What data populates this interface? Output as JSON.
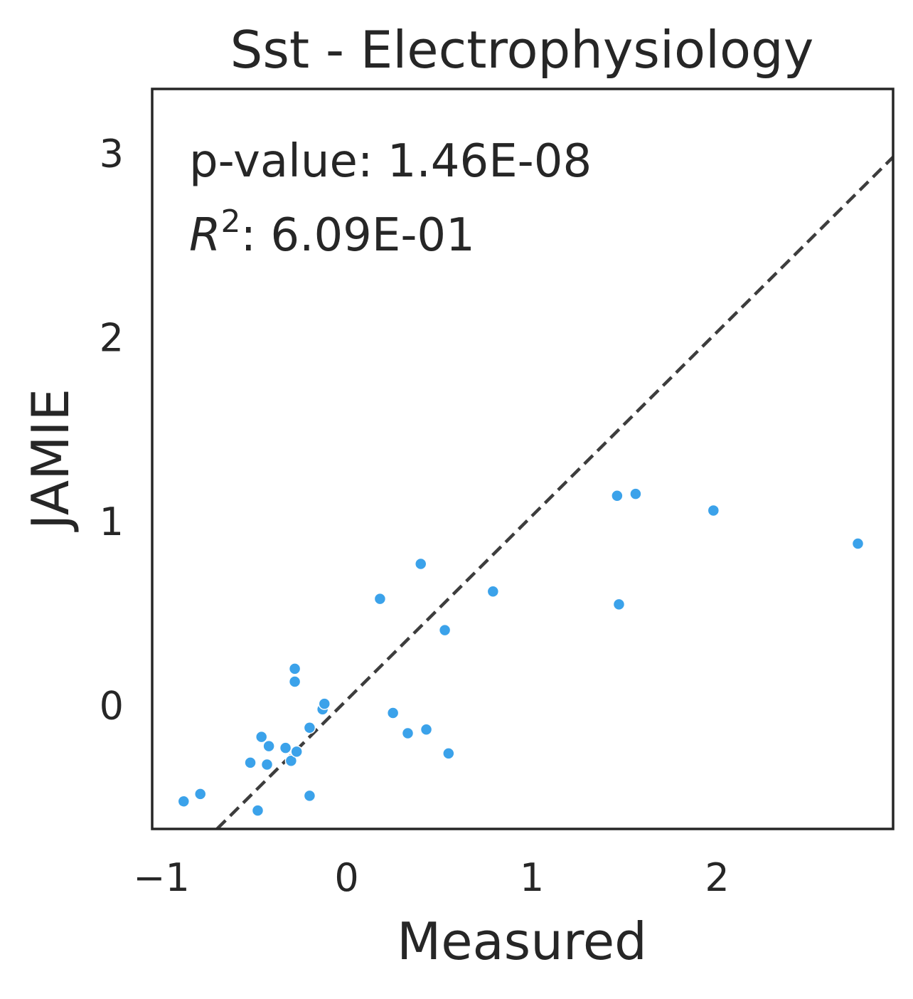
{
  "chart_data": {
    "type": "scatter",
    "title": "Sst - Electrophysiology",
    "xlabel": "Measured",
    "ylabel": "JAMIE",
    "xlim": [
      -1.05,
      2.95
    ],
    "ylim": [
      -0.67,
      3.35
    ],
    "xticks": [
      -1,
      0,
      1,
      2
    ],
    "xtick_labels": [
      "−1",
      "0",
      "1",
      "2"
    ],
    "yticks": [
      0,
      1,
      2,
      3
    ],
    "ytick_labels": [
      "0",
      "1",
      "2",
      "3"
    ],
    "grid": false,
    "point_color": "#3ba2ea",
    "fit_line": {
      "style": "dashed",
      "color": "#3d3d3d",
      "points": [
        [
          -0.7,
          -0.67
        ],
        [
          2.95,
          2.98
        ]
      ]
    },
    "annotations": {
      "pvalue_text": "p-value: 1.46E-08",
      "r2_symbol": "R",
      "r2_exponent": "2",
      "r2_value": ": 6.09E-01"
    },
    "points": [
      {
        "x": -0.88,
        "y": -0.52
      },
      {
        "x": -0.79,
        "y": -0.48
      },
      {
        "x": -0.52,
        "y": -0.31
      },
      {
        "x": -0.48,
        "y": -0.57
      },
      {
        "x": -0.46,
        "y": -0.17
      },
      {
        "x": -0.43,
        "y": -0.32
      },
      {
        "x": -0.42,
        "y": -0.22
      },
      {
        "x": -0.33,
        "y": -0.23
      },
      {
        "x": -0.3,
        "y": -0.3
      },
      {
        "x": -0.28,
        "y": 0.13
      },
      {
        "x": -0.28,
        "y": 0.2
      },
      {
        "x": -0.27,
        "y": -0.25
      },
      {
        "x": -0.2,
        "y": -0.49
      },
      {
        "x": -0.2,
        "y": -0.12
      },
      {
        "x": -0.13,
        "y": -0.02
      },
      {
        "x": -0.12,
        "y": 0.01
      },
      {
        "x": 0.18,
        "y": 0.58
      },
      {
        "x": 0.25,
        "y": -0.04
      },
      {
        "x": 0.33,
        "y": -0.15
      },
      {
        "x": 0.4,
        "y": 0.77
      },
      {
        "x": 0.43,
        "y": -0.13
      },
      {
        "x": 0.53,
        "y": 0.41
      },
      {
        "x": 0.55,
        "y": -0.26
      },
      {
        "x": 0.79,
        "y": 0.62
      },
      {
        "x": 1.46,
        "y": 1.14
      },
      {
        "x": 1.47,
        "y": 0.55
      },
      {
        "x": 1.56,
        "y": 1.15
      },
      {
        "x": 1.98,
        "y": 1.06
      },
      {
        "x": 2.76,
        "y": 0.88
      }
    ]
  }
}
